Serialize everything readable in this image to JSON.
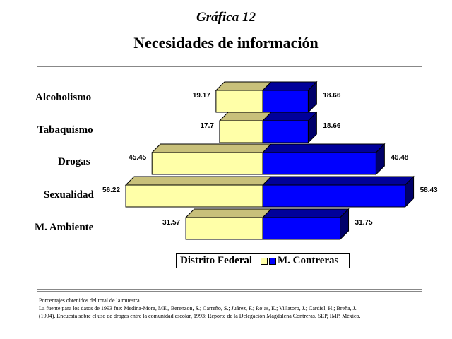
{
  "header": {
    "graph_number": "Gráfica 12",
    "title": "Necesidades de información"
  },
  "chart_data": {
    "type": "bar",
    "orientation": "horizontal-diverging-3d",
    "categories": [
      "Alcoholismo",
      "Tabaquismo",
      "Drogas",
      "Sexualidad",
      "M. Ambiente"
    ],
    "series": [
      {
        "name": "Distrito Federal",
        "values": [
          19.17,
          17.7,
          45.45,
          56.22,
          31.57
        ],
        "color": "#ffffa8",
        "top_color": "#c8c07a"
      },
      {
        "name": "M. Contreras",
        "values": [
          18.66,
          18.66,
          46.48,
          58.43,
          31.75
        ],
        "color": "#0000ff",
        "top_color": "#00009a"
      }
    ],
    "value_labels": {
      "Distrito Federal": [
        "19.17",
        "17.7",
        "45.45",
        "56.22",
        "31.57"
      ],
      "M. Contreras": [
        "18.66",
        "18.66",
        "46.48",
        "58.43",
        "31.75"
      ]
    },
    "legend_position": "bottom",
    "grid": false
  },
  "notes": [
    "Porcentajes obtenidos del total de la muestra.",
    "La fuente para los datos de 1993 fue: Medina-Mora, ME,, Berenzon, S.; Carreño, S.; Juárez, F.; Rojas, E.; Villatoro, J.; Cardiel, H.; Breña, J.",
    "(1994). Encuesta sobre el uso de drogas entre la comunidad escolar, 1993: Reporte de la Delegación Magdalena Contreras. SEP, IMP. México."
  ]
}
